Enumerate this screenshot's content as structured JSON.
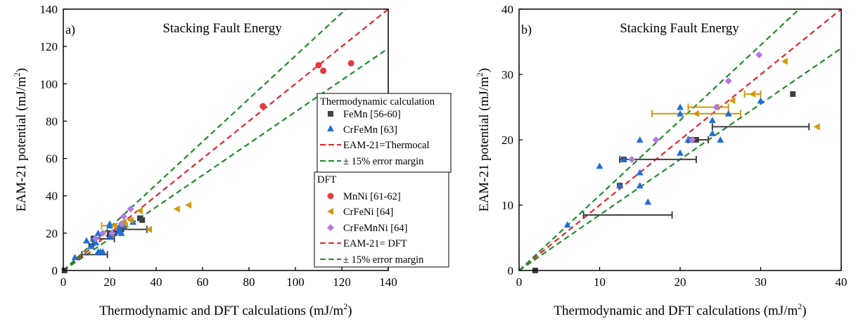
{
  "chart_data": [
    {
      "type": "scatter",
      "panel_label": "a)",
      "title": "Stacking Fault Energy",
      "xlabel": "Thermodynamic and DFT calculations",
      "xunit": "(mJ/m",
      "ylabel": "EAM-21 potential",
      "yunit": "(mJ/m",
      "unit_exp": "2",
      "unit_close": ")",
      "xlim": [
        0,
        140
      ],
      "ylim": [
        0,
        140
      ],
      "xticks": [
        "0",
        "20",
        "40",
        "60",
        "80",
        "100",
        "120",
        "140"
      ],
      "yticks": [
        "0",
        "20",
        "40",
        "60",
        "80",
        "100",
        "120",
        "140"
      ],
      "legend_placement": "center-right",
      "legend_groups": [
        {
          "heading": "Thermodynamic calculation",
          "entries": [
            {
              "label": "FeMn [56-60]",
              "kind": "square",
              "color": "#404040"
            },
            {
              "label": "CrFeMn [63]",
              "kind": "triangle-up",
              "color": "#1f6fd6"
            },
            {
              "label": "EAM-21=Thermocal",
              "kind": "dash",
              "color": "#e8242a"
            },
            {
              "label": "± 15% error margin",
              "kind": "dash",
              "color": "#1e8c2a"
            }
          ]
        },
        {
          "heading": "DFT",
          "entries": [
            {
              "label": "MnNi [61-62]",
              "kind": "circle",
              "color": "#e8383c"
            },
            {
              "label": "CrFeNi [64]",
              "kind": "triangle-left",
              "color": "#d09a0e"
            },
            {
              "label": "CrFeMnNi [64]",
              "kind": "diamond",
              "color": "#b27ae0"
            },
            {
              "label": "EAM-21= DFT",
              "kind": "dash",
              "color": "#e8242a"
            },
            {
              "label": "± 15% error margin",
              "kind": "dash",
              "color": "#1e8c2a"
            }
          ]
        }
      ],
      "lines": [
        {
          "slope": 1.0,
          "color": "#e8242a"
        },
        {
          "slope": 1.15,
          "color": "#1e8c2a"
        },
        {
          "slope": 0.85,
          "color": "#1e8c2a"
        }
      ],
      "series": [
        {
          "name": "FeMn [56-60]",
          "marker": "square",
          "color": "#404040",
          "points": [
            [
              0.5,
              0
            ],
            [
              12,
              13
            ],
            [
              13,
              17
            ],
            [
              20,
              18
            ],
            [
              20,
              20
            ],
            [
              22,
              20
            ],
            [
              25,
              22
            ],
            [
              33,
              28
            ],
            [
              34,
              27
            ]
          ]
        },
        {
          "name": "CrFeMn [63]",
          "marker": "triangle-up",
          "color": "#1f6fd6",
          "points": [
            [
              5,
              7
            ],
            [
              10,
              16
            ],
            [
              12,
              13
            ],
            [
              13,
              17
            ],
            [
              14,
              15
            ],
            [
              15,
              20
            ],
            [
              15,
              10
            ],
            [
              16,
              10
            ],
            [
              17,
              10
            ],
            [
              20,
              25
            ],
            [
              20,
              24
            ],
            [
              20,
              18
            ],
            [
              21,
              20
            ],
            [
              24,
              23
            ],
            [
              24,
              21
            ],
            [
              25,
              20
            ],
            [
              26,
              24
            ],
            [
              30,
              26
            ]
          ]
        },
        {
          "name": "MnNi [61-62]",
          "marker": "circle",
          "color": "#e8383c",
          "points": [
            [
              86,
              88
            ],
            [
              110,
              110
            ],
            [
              112,
              107
            ],
            [
              124,
              111
            ]
          ]
        },
        {
          "name": "CrFeNi [64]",
          "marker": "triangle-left",
          "color": "#d09a0e",
          "points": [
            [
              22,
              24
            ],
            [
              25,
              25
            ],
            [
              26,
              26
            ],
            [
              29,
              27
            ],
            [
              33,
              32
            ],
            [
              37,
              22
            ],
            [
              49,
              33
            ],
            [
              54,
              35
            ]
          ]
        },
        {
          "name": "CrFeMnNi [64]",
          "marker": "diamond",
          "color": "#b27ae0",
          "points": [
            [
              14,
              17
            ],
            [
              17,
              20
            ],
            [
              21,
              20
            ],
            [
              25,
              25
            ],
            [
              26,
              29
            ],
            [
              29,
              33
            ]
          ]
        }
      ],
      "error_bars": [
        {
          "color": "#404040",
          "y": 8.5,
          "x": [
            8,
            19
          ]
        },
        {
          "color": "#404040",
          "y": 22,
          "x": [
            24,
            36
          ]
        },
        {
          "color": "#404040",
          "y": 17,
          "x": [
            12.5,
            22
          ]
        },
        {
          "color": "#d09a0e",
          "y": 24,
          "x": [
            16.5,
            27.5
          ]
        }
      ]
    },
    {
      "type": "scatter",
      "panel_label": "b)",
      "title": "Stacking Fault Energy",
      "xlabel": "Thermodynamic and DFT calculations",
      "xunit": "(mJ/m",
      "ylabel": "EAM-21 potential",
      "yunit": "(mJ/m",
      "unit_exp": "2",
      "unit_close": ")",
      "xlim": [
        0,
        40
      ],
      "ylim": [
        0,
        40
      ],
      "xticks": [
        "0",
        "10",
        "20",
        "30",
        "40"
      ],
      "yticks": [
        "0",
        "10",
        "20",
        "30",
        "40"
      ],
      "lines": [
        {
          "slope": 1.0,
          "color": "#e8242a"
        },
        {
          "slope": 1.15,
          "color": "#1e8c2a"
        },
        {
          "slope": 0.85,
          "color": "#1e8c2a"
        }
      ],
      "series": [
        {
          "name": "FeMn [56-60]",
          "marker": "square",
          "color": "#404040",
          "points": [
            [
              2,
              0
            ],
            [
              12.5,
              13
            ],
            [
              13,
              17
            ],
            [
              21.5,
              20
            ],
            [
              22,
              20
            ],
            [
              34,
              27
            ]
          ]
        },
        {
          "name": "CrFeMn [63]",
          "marker": "triangle-up",
          "color": "#1f6fd6",
          "points": [
            [
              6,
              7
            ],
            [
              10,
              16
            ],
            [
              12.5,
              13
            ],
            [
              13,
              17
            ],
            [
              15,
              20
            ],
            [
              15,
              15
            ],
            [
              15,
              13
            ],
            [
              16,
              10.5
            ],
            [
              20,
              25
            ],
            [
              20,
              24
            ],
            [
              20,
              18
            ],
            [
              21,
              20
            ],
            [
              24,
              23
            ],
            [
              24,
              21
            ],
            [
              25,
              20
            ],
            [
              26,
              24
            ],
            [
              30,
              26
            ]
          ]
        },
        {
          "name": "CrFeNi [64]",
          "marker": "triangle-left",
          "color": "#d09a0e",
          "points": [
            [
              22,
              24
            ],
            [
              24.5,
              25
            ],
            [
              26.5,
              26
            ],
            [
              29,
              27
            ],
            [
              33,
              32
            ],
            [
              37,
              22
            ]
          ]
        },
        {
          "name": "CrFeMnNi [64]",
          "marker": "diamond",
          "color": "#b27ae0",
          "points": [
            [
              14,
              17
            ],
            [
              17,
              20
            ],
            [
              21.5,
              20
            ],
            [
              24.5,
              25
            ],
            [
              26,
              29
            ],
            [
              29.8,
              33
            ]
          ]
        }
      ],
      "error_bars": [
        {
          "color": "#404040",
          "y": 8.5,
          "x": [
            8,
            19
          ]
        },
        {
          "color": "#404040",
          "y": 22,
          "x": [
            24,
            36
          ]
        },
        {
          "color": "#404040",
          "y": 17,
          "x": [
            12.5,
            22
          ]
        },
        {
          "color": "#404040",
          "y": 20,
          "x": [
            21,
            23.5
          ]
        },
        {
          "color": "#d09a0e",
          "y": 24,
          "x": [
            16.5,
            27.5
          ]
        },
        {
          "color": "#d09a0e",
          "y": 25,
          "x": [
            21,
            26
          ]
        },
        {
          "color": "#d09a0e",
          "y": 27,
          "x": [
            28,
            30
          ]
        }
      ]
    }
  ]
}
